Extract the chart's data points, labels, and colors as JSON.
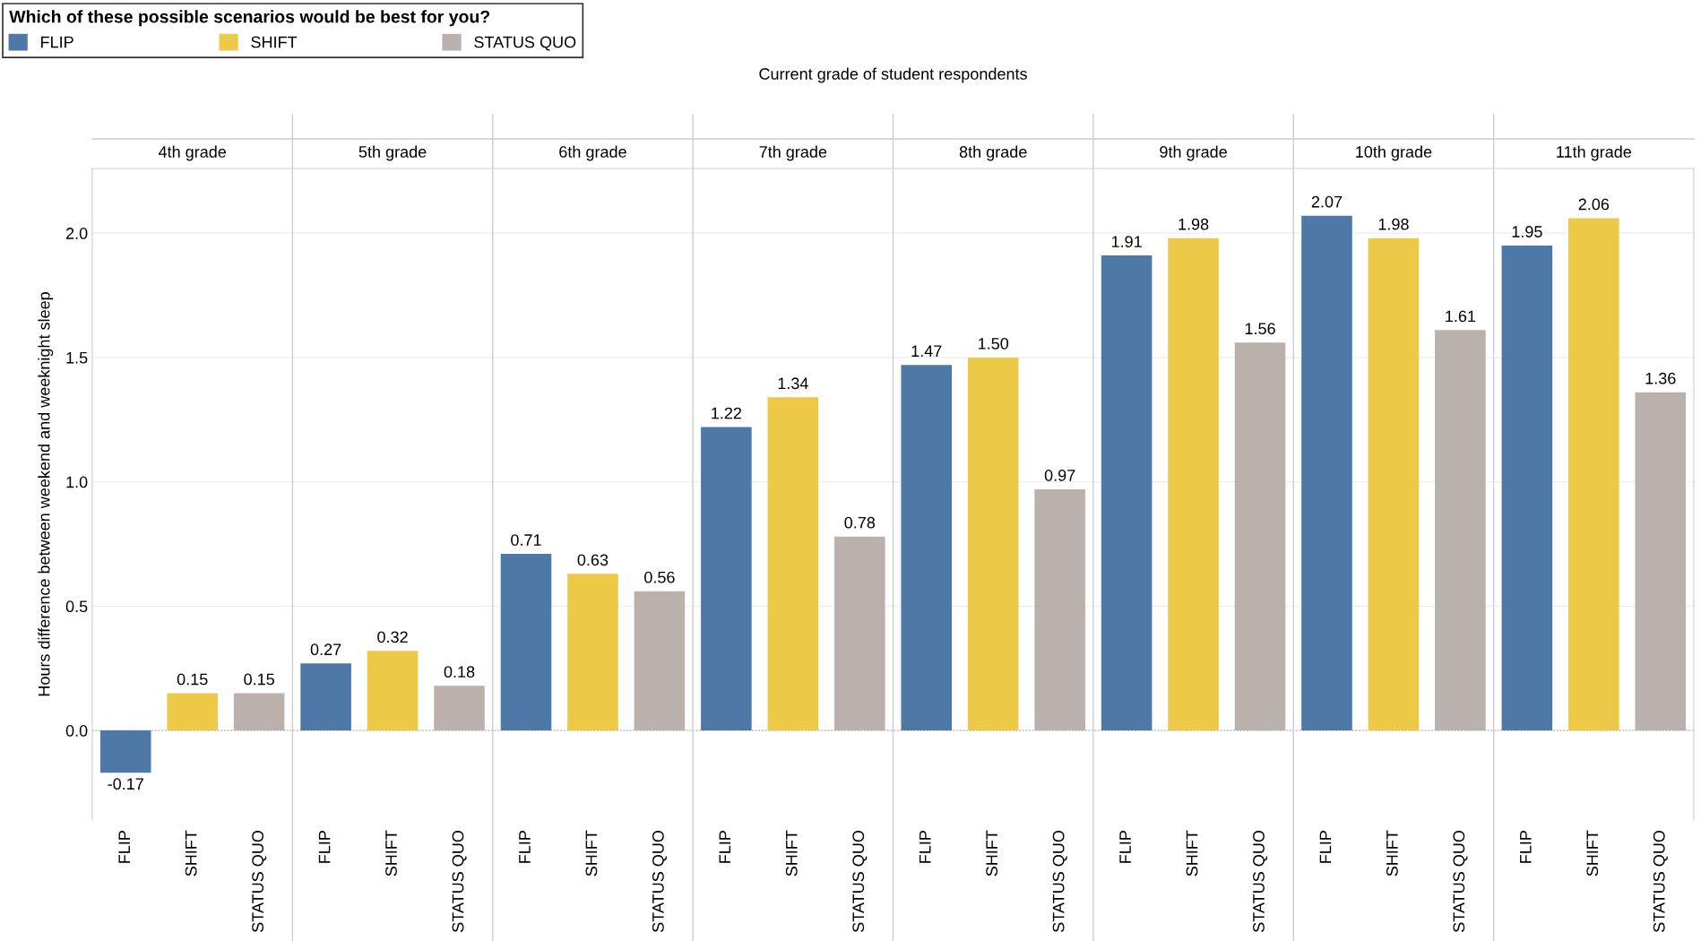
{
  "chart_data": {
    "type": "bar",
    "legend_title": "Which of these possible scenarios would be best for you?",
    "legend": "top",
    "annotations": [
      "Current grade of student respondents",
      "4th grade",
      "5th grade",
      "6th grade",
      "7th grade",
      "8th grade",
      "9th grade",
      "10th grade",
      "11th grade"
    ],
    "ylabel": "Hours difference between weekend and weeknight sleep",
    "categories": [
      "FLIP",
      "SHIFT",
      "STATUS QUO",
      "FLIP",
      "SHIFT",
      "STATUS QUO",
      "FLIP",
      "SHIFT",
      "STATUS QUO",
      "FLIP",
      "SHIFT",
      "STATUS QUO",
      "FLIP",
      "SHIFT",
      "STATUS QUO",
      "FLIP",
      "SHIFT",
      "STATUS QUO",
      "FLIP",
      "SHIFT",
      "STATUS QUO",
      "FLIP",
      "SHIFT",
      "STATUS QUO"
    ],
    "series": [
      {
        "name": "FLIP",
        "color": "#4e79a7",
        "values": [
          -0.17,
          null,
          null,
          0.27,
          null,
          null,
          0.71,
          null,
          null,
          1.22,
          null,
          null,
          1.47,
          null,
          null,
          1.91,
          null,
          null,
          2.07,
          null,
          null,
          1.95,
          null,
          null
        ],
        "value_labels": [
          "-0.17",
          null,
          null,
          "0.27",
          null,
          null,
          "0.71",
          null,
          null,
          "1.22",
          null,
          null,
          "1.47",
          null,
          null,
          "1.91",
          null,
          null,
          "2.07",
          null,
          null,
          "1.95",
          null,
          null
        ]
      },
      {
        "name": "SHIFT",
        "color": "#edc948",
        "values": [
          null,
          0.15,
          null,
          null,
          0.32,
          null,
          null,
          0.63,
          null,
          null,
          1.34,
          null,
          null,
          1.5,
          null,
          null,
          1.98,
          null,
          null,
          1.98,
          null,
          null,
          2.06,
          null
        ],
        "value_labels": [
          null,
          "0.15",
          null,
          null,
          "0.32",
          null,
          null,
          "0.63",
          null,
          null,
          "1.34",
          null,
          null,
          "1.50",
          null,
          null,
          "1.98",
          null,
          null,
          "1.98",
          null,
          null,
          "2.06",
          null
        ]
      },
      {
        "name": "STATUS QUO",
        "color": "#bab0ac",
        "values": [
          null,
          null,
          0.15,
          null,
          null,
          0.18,
          null,
          null,
          0.56,
          null,
          null,
          0.78,
          null,
          null,
          0.97,
          null,
          null,
          1.56,
          null,
          null,
          1.61,
          null,
          null,
          1.36
        ],
        "value_labels": [
          null,
          null,
          "0.15",
          null,
          null,
          "0.18",
          null,
          null,
          "0.56",
          null,
          null,
          "0.78",
          null,
          null,
          "0.97",
          null,
          null,
          "1.56",
          null,
          null,
          "1.61",
          null,
          null,
          "1.36"
        ]
      }
    ],
    "ylim": [
      -0.36,
      2.26
    ],
    "yticks": [
      {
        "value": 0,
        "label": "0.0"
      },
      {
        "value": 0.5,
        "label": "0.5"
      },
      {
        "value": 1,
        "label": "1.0"
      },
      {
        "value": 1.5,
        "label": "1.5"
      },
      {
        "value": 2,
        "label": "2.0"
      }
    ],
    "grid": "y",
    "ref_lines": [
      {
        "axis": "y",
        "value": 0,
        "line_style": "dotted",
        "color": "#aaaaaa"
      }
    ]
  }
}
